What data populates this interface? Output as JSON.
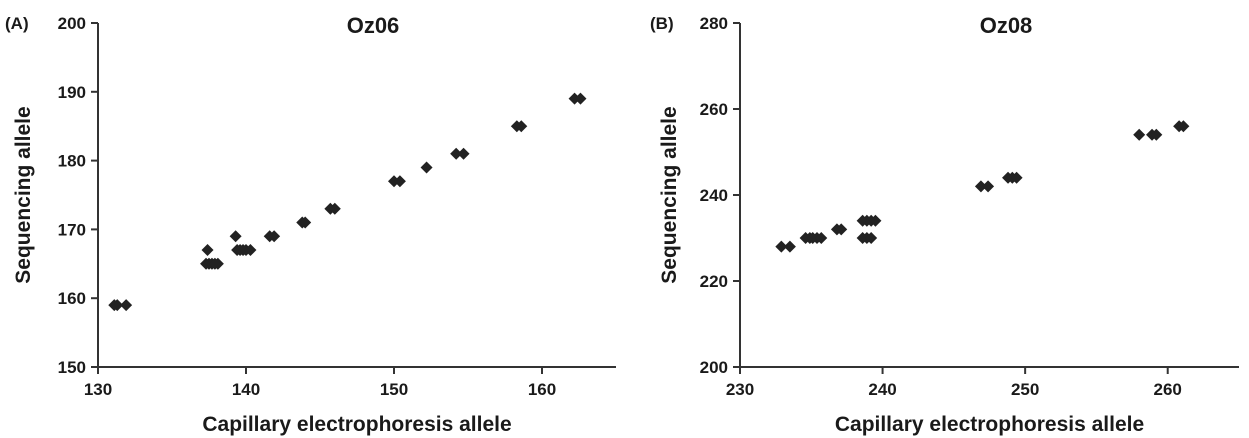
{
  "chart_data": [
    {
      "type": "scatter",
      "panel_label": "(A)",
      "title": "Oz06",
      "xlabel": "Capillary electrophoresis allele",
      "ylabel": "Sequencing allele",
      "xlim": [
        130,
        165
      ],
      "ylim": [
        150,
        200
      ],
      "xticks": [
        130,
        140,
        150,
        160
      ],
      "yticks": [
        150,
        160,
        170,
        180,
        190,
        200
      ],
      "grid": false,
      "marker_color": "#222222",
      "points": [
        {
          "x": 131.1,
          "y": 159
        },
        {
          "x": 131.3,
          "y": 159
        },
        {
          "x": 131.9,
          "y": 159
        },
        {
          "x": 137.4,
          "y": 167
        },
        {
          "x": 137.3,
          "y": 165
        },
        {
          "x": 137.5,
          "y": 165
        },
        {
          "x": 137.7,
          "y": 165
        },
        {
          "x": 137.9,
          "y": 165
        },
        {
          "x": 138.1,
          "y": 165
        },
        {
          "x": 139.3,
          "y": 169
        },
        {
          "x": 139.4,
          "y": 167
        },
        {
          "x": 139.6,
          "y": 167
        },
        {
          "x": 139.8,
          "y": 167
        },
        {
          "x": 140.0,
          "y": 167
        },
        {
          "x": 140.3,
          "y": 167
        },
        {
          "x": 141.6,
          "y": 169
        },
        {
          "x": 141.9,
          "y": 169
        },
        {
          "x": 143.8,
          "y": 171
        },
        {
          "x": 144.0,
          "y": 171
        },
        {
          "x": 145.7,
          "y": 173
        },
        {
          "x": 146.0,
          "y": 173
        },
        {
          "x": 150.0,
          "y": 177
        },
        {
          "x": 150.4,
          "y": 177
        },
        {
          "x": 152.2,
          "y": 179
        },
        {
          "x": 154.2,
          "y": 181
        },
        {
          "x": 154.7,
          "y": 181
        },
        {
          "x": 158.3,
          "y": 185
        },
        {
          "x": 158.6,
          "y": 185
        },
        {
          "x": 162.2,
          "y": 189
        },
        {
          "x": 162.6,
          "y": 189
        }
      ]
    },
    {
      "type": "scatter",
      "panel_label": "(B)",
      "title": "Oz08",
      "xlabel": "Capillary electrophoresis allele",
      "ylabel": "Sequencing allele",
      "xlim": [
        230,
        265
      ],
      "ylim": [
        200,
        280
      ],
      "xticks": [
        230,
        240,
        250,
        260
      ],
      "yticks": [
        200,
        220,
        240,
        260,
        280
      ],
      "grid": false,
      "marker_color": "#222222",
      "points": [
        {
          "x": 232.9,
          "y": 228
        },
        {
          "x": 233.5,
          "y": 228
        },
        {
          "x": 234.6,
          "y": 230
        },
        {
          "x": 234.9,
          "y": 230
        },
        {
          "x": 235.1,
          "y": 230
        },
        {
          "x": 235.4,
          "y": 230
        },
        {
          "x": 235.7,
          "y": 230
        },
        {
          "x": 236.8,
          "y": 232
        },
        {
          "x": 237.1,
          "y": 232
        },
        {
          "x": 238.6,
          "y": 234
        },
        {
          "x": 238.9,
          "y": 234
        },
        {
          "x": 239.2,
          "y": 234
        },
        {
          "x": 239.5,
          "y": 234
        },
        {
          "x": 238.6,
          "y": 230
        },
        {
          "x": 238.9,
          "y": 230
        },
        {
          "x": 239.2,
          "y": 230
        },
        {
          "x": 246.9,
          "y": 242
        },
        {
          "x": 247.4,
          "y": 242
        },
        {
          "x": 248.8,
          "y": 244
        },
        {
          "x": 249.1,
          "y": 244
        },
        {
          "x": 249.4,
          "y": 244
        },
        {
          "x": 258.0,
          "y": 254
        },
        {
          "x": 258.9,
          "y": 254
        },
        {
          "x": 259.2,
          "y": 254
        },
        {
          "x": 260.8,
          "y": 256
        },
        {
          "x": 261.1,
          "y": 256
        }
      ]
    }
  ]
}
